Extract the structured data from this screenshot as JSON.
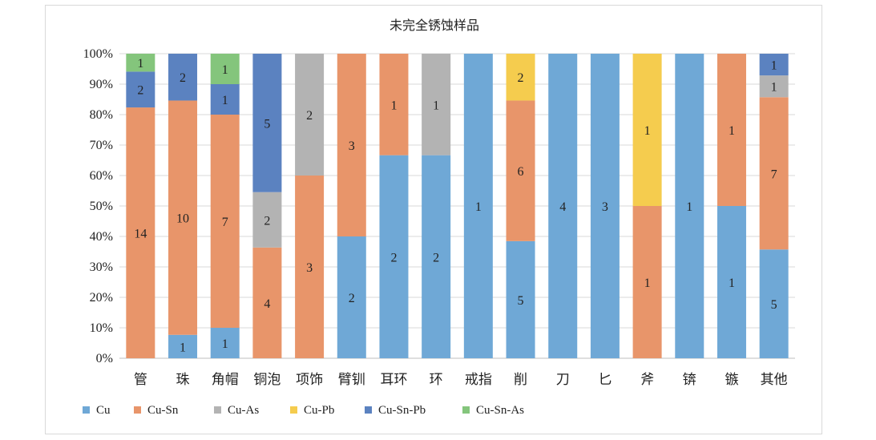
{
  "chart_data": {
    "type": "bar",
    "stacked": true,
    "normalized": true,
    "title": "未完全锈蚀样品",
    "xlabel": "",
    "ylabel": "",
    "ylim": [
      0,
      100
    ],
    "yticks": [
      "0%",
      "10%",
      "20%",
      "30%",
      "40%",
      "50%",
      "60%",
      "70%",
      "80%",
      "90%",
      "100%"
    ],
    "grid": true,
    "legend_position": "bottom",
    "categories": [
      "管",
      "珠",
      "角帽",
      "铜泡",
      "项饰",
      "臂钏",
      "耳环",
      "环",
      "戒指",
      "削",
      "刀",
      "匕",
      "斧",
      "锛",
      "镞",
      "其他"
    ],
    "series": [
      {
        "name": "Cu",
        "color": "#6fa8d6",
        "values": [
          0,
          1,
          1,
          0,
          0,
          2,
          2,
          2,
          1,
          5,
          4,
          3,
          0,
          1,
          1,
          5
        ]
      },
      {
        "name": "Cu-Sn",
        "color": "#e8956a",
        "values": [
          14,
          10,
          7,
          4,
          3,
          3,
          1,
          0,
          0,
          6,
          0,
          0,
          1,
          0,
          1,
          7
        ]
      },
      {
        "name": "Cu-As",
        "color": "#b3b3b3",
        "values": [
          0,
          0,
          0,
          2,
          2,
          0,
          0,
          1,
          0,
          0,
          0,
          0,
          0,
          0,
          0,
          1
        ]
      },
      {
        "name": "Cu-Pb",
        "color": "#f5cc4e",
        "values": [
          0,
          0,
          0,
          0,
          0,
          0,
          0,
          0,
          0,
          2,
          0,
          0,
          1,
          0,
          0,
          0
        ]
      },
      {
        "name": "Cu-Sn-Pb",
        "color": "#5b82c0",
        "values": [
          2,
          2,
          1,
          5,
          0,
          0,
          0,
          0,
          0,
          0,
          0,
          0,
          0,
          0,
          0,
          1
        ]
      },
      {
        "name": "Cu-Sn-As",
        "color": "#84c57c",
        "values": [
          1,
          0,
          1,
          0,
          0,
          0,
          0,
          0,
          0,
          0,
          0,
          0,
          0,
          0,
          0,
          0
        ]
      }
    ]
  }
}
